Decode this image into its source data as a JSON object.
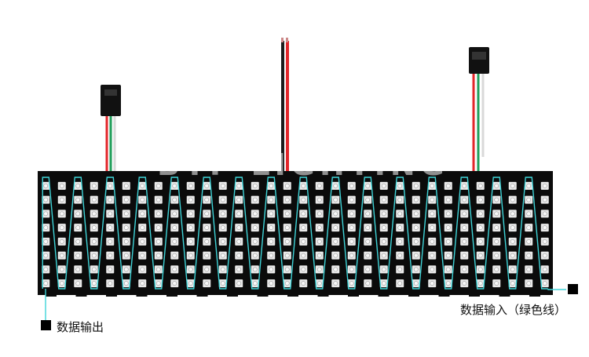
{
  "labels": {
    "data_output": "数据输出",
    "data_input": "数据输入（绿色线）"
  },
  "watermark": "BTF-LIGHTING",
  "panel": {
    "led_columns": 32,
    "led_rows": 8
  },
  "colors": {
    "pcb": "#0b0b0b",
    "led_chip": "#e9e9e9",
    "trace": "#3fd4d8",
    "wire_red": "#e3262a",
    "wire_black": "#1b1b1b",
    "wire_green": "#1f9e5a",
    "wire_white": "#d9d9d9",
    "connector": "#111111",
    "marker": "#000000"
  },
  "icons": {
    "output_marker": "black-square-icon",
    "input_marker": "black-square-icon"
  }
}
